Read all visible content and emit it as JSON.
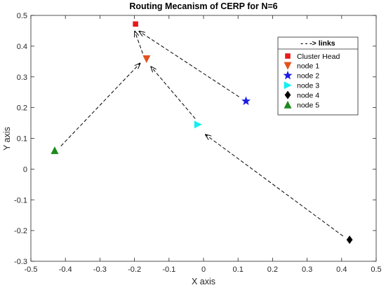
{
  "chart_data": {
    "type": "scatter",
    "title": "Routing Mecanism of CERP for N=6",
    "xlabel": "X axis",
    "ylabel": "Y axis",
    "xlim": [
      -0.5,
      0.5
    ],
    "ylim": [
      -0.3,
      0.5
    ],
    "xticks": [
      -0.5,
      -0.4,
      -0.3,
      -0.2,
      -0.1,
      0,
      0.1,
      0.2,
      0.3,
      0.4,
      0.5
    ],
    "yticks": [
      -0.3,
      -0.2,
      -0.1,
      0,
      0.1,
      0.2,
      0.3,
      0.4,
      0.5
    ],
    "xtick_labels": [
      "-0.5",
      "-0.4",
      "-0.3",
      "-0.2",
      "-0.1",
      "0",
      "0.1",
      "0.2",
      "0.3",
      "0.4",
      "0.5"
    ],
    "ytick_labels": [
      "-0.3",
      "-0.2",
      "-0.1",
      "0",
      "0.1",
      "0.2",
      "0.3",
      "0.4",
      "0.5"
    ],
    "grid": false,
    "legend_position": "top-right",
    "legend_title": "- - -> links",
    "series": [
      {
        "name": "Cluster Head",
        "marker": "square",
        "color": "#e8191c",
        "x": -0.197,
        "y": 0.472
      },
      {
        "name": "node 1",
        "marker": "triangle-down",
        "color": "#e2521d",
        "x": -0.165,
        "y": 0.358
      },
      {
        "name": "node 2",
        "marker": "star",
        "color": "#1a1ae6",
        "x": 0.123,
        "y": 0.221
      },
      {
        "name": "node 3",
        "marker": "triangle-right",
        "color": "#13f0f0",
        "x": -0.016,
        "y": 0.145
      },
      {
        "name": "node 4",
        "marker": "diamond",
        "color": "#000000",
        "x": 0.423,
        "y": -0.23
      },
      {
        "name": "node 5",
        "marker": "triangle-up",
        "color": "#1c8a1c",
        "x": -0.431,
        "y": 0.061
      }
    ],
    "links": [
      {
        "from": [
          0.103,
          0.235
        ],
        "to": [
          -0.186,
          0.448
        ]
      },
      {
        "from": [
          -0.176,
          0.376
        ],
        "to": [
          -0.199,
          0.448
        ]
      },
      {
        "from": [
          -0.413,
          0.075
        ],
        "to": [
          -0.184,
          0.344
        ]
      },
      {
        "from": [
          -0.024,
          0.164
        ],
        "to": [
          -0.152,
          0.333
        ]
      },
      {
        "from": [
          0.404,
          -0.218
        ],
        "to": [
          0.006,
          0.112
        ]
      }
    ]
  }
}
